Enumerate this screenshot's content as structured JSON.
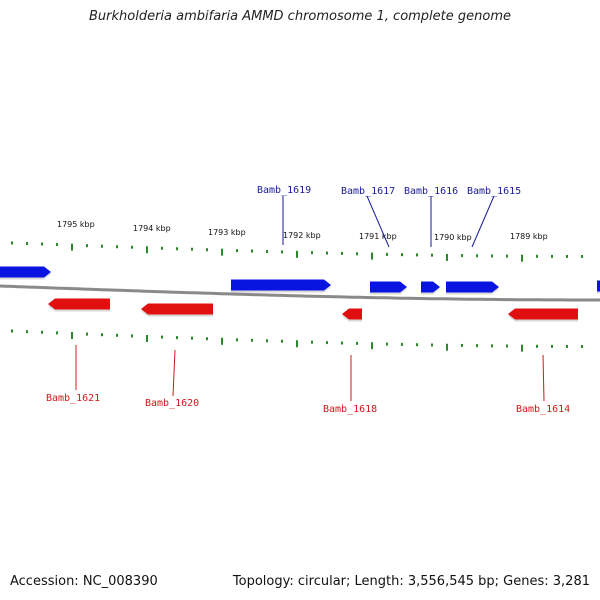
{
  "title": "Burkholderia ambifaria AMMD chromosome 1, complete genome",
  "footer": {
    "accession": "Accession: NC_008390",
    "summary": "Topology: circular; Length: 3,556,545 bp; Genes: 3,281"
  },
  "colors": {
    "forward_strand": "#0a14e0",
    "reverse_strand": "#e01010",
    "forward_label": "#1a1a9a",
    "reverse_label": "#d01818",
    "backbone": "#8a8a8a",
    "ticks": "#2a8a2a"
  },
  "kbp_labels": [
    "1795 kbp",
    "1794 kbp",
    "1793 kbp",
    "1792 kbp",
    "1791 kbp",
    "1790 kbp",
    "1789 kbp"
  ],
  "genes_forward": [
    {
      "label": ""
    },
    {
      "label": "Bamb_1619"
    },
    {
      "label": "Bamb_1617"
    },
    {
      "label": "Bamb_1616"
    },
    {
      "label": "Bamb_1615"
    },
    {
      "label": ""
    }
  ],
  "genes_reverse": [
    {
      "label": "Bamb_1621"
    },
    {
      "label": "Bamb_1620"
    },
    {
      "label": "Bamb_1618"
    },
    {
      "label": "Bamb_1614"
    }
  ]
}
